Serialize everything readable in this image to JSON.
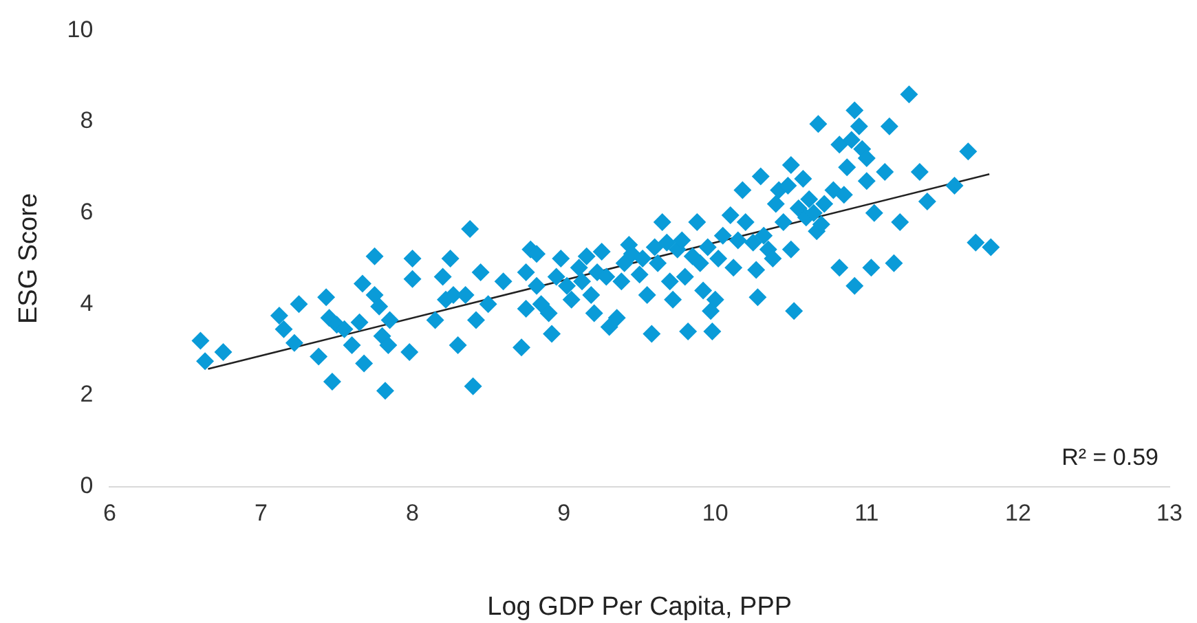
{
  "chart_data": {
    "type": "scatter",
    "xlabel": "Log GDP Per Capita, PPP",
    "ylabel": "ESG Score",
    "xlim": [
      6,
      13
    ],
    "xticks": [
      6,
      7,
      8,
      9,
      10,
      11,
      12,
      13
    ],
    "ylim": [
      0,
      10
    ],
    "yticks": [
      0,
      2,
      4,
      6,
      8,
      10
    ],
    "grid": false,
    "legend": false,
    "marker": "diamond",
    "annotations": [
      "R² = 0.59"
    ],
    "series": [
      {
        "color": "#0a9bd8",
        "x": [
          6.6,
          6.63,
          6.75,
          7.12,
          7.15,
          7.22,
          7.25,
          7.38,
          7.43,
          7.45,
          7.47,
          7.5,
          7.55,
          7.6,
          7.65,
          7.67,
          7.68,
          7.75,
          7.75,
          7.78,
          7.8,
          7.82,
          7.85,
          7.84,
          7.98,
          8.0,
          8.0,
          8.15,
          8.2,
          8.22,
          8.25,
          8.27,
          8.3,
          8.35,
          8.38,
          8.4,
          8.42,
          8.45,
          8.5,
          8.6,
          8.72,
          8.75,
          8.75,
          8.78,
          8.82,
          8.82,
          8.85,
          8.9,
          8.92,
          8.95,
          8.98,
          9.02,
          9.05,
          9.1,
          9.12,
          9.15,
          9.18,
          9.2,
          9.22,
          9.25,
          9.28,
          9.3,
          9.35,
          9.38,
          9.4,
          9.43,
          9.45,
          9.5,
          9.52,
          9.55,
          9.58,
          9.6,
          9.62,
          9.65,
          9.68,
          9.7,
          9.72,
          9.75,
          9.78,
          9.8,
          9.82,
          9.85,
          9.88,
          9.9,
          9.92,
          9.95,
          9.97,
          9.98,
          10.0,
          10.02,
          10.05,
          10.1,
          10.12,
          10.15,
          10.18,
          10.2,
          10.25,
          10.27,
          10.28,
          10.3,
          10.32,
          10.35,
          10.38,
          10.4,
          10.42,
          10.45,
          10.48,
          10.5,
          10.5,
          10.52,
          10.55,
          10.58,
          10.6,
          10.62,
          10.65,
          10.67,
          10.68,
          10.7,
          10.72,
          10.78,
          10.82,
          10.82,
          10.85,
          10.87,
          10.9,
          10.92,
          10.95,
          10.97,
          10.92,
          11.0,
          11.0,
          11.03,
          11.05,
          11.12,
          11.15,
          11.18,
          11.22,
          11.28,
          11.35,
          11.4,
          11.58,
          11.67,
          11.72,
          11.82
        ],
        "values": [
          3.2,
          2.75,
          2.95,
          3.75,
          3.45,
          3.15,
          4.0,
          2.85,
          4.15,
          3.7,
          2.3,
          3.55,
          3.45,
          3.1,
          3.6,
          4.45,
          2.7,
          5.05,
          4.2,
          3.95,
          3.3,
          2.1,
          3.65,
          3.1,
          2.95,
          5.0,
          4.55,
          3.65,
          4.6,
          4.1,
          5.0,
          4.2,
          3.1,
          4.2,
          5.65,
          2.2,
          3.65,
          4.7,
          4.0,
          4.5,
          3.05,
          4.7,
          3.9,
          5.2,
          5.1,
          4.4,
          4.0,
          3.8,
          3.35,
          4.6,
          5.0,
          4.4,
          4.1,
          4.8,
          4.5,
          5.05,
          4.2,
          3.8,
          4.7,
          5.15,
          4.6,
          3.5,
          3.7,
          4.5,
          4.9,
          5.3,
          5.1,
          4.65,
          5.0,
          4.2,
          3.35,
          5.25,
          4.9,
          5.8,
          5.35,
          4.5,
          4.1,
          5.2,
          5.4,
          4.6,
          3.4,
          5.05,
          5.8,
          4.9,
          4.3,
          5.25,
          3.85,
          3.4,
          4.1,
          5.0,
          5.5,
          5.95,
          4.8,
          5.4,
          6.5,
          5.8,
          5.35,
          4.75,
          4.15,
          6.8,
          5.5,
          5.2,
          5.0,
          6.2,
          6.5,
          5.8,
          6.6,
          7.05,
          5.2,
          3.85,
          6.1,
          6.75,
          5.9,
          6.3,
          6.0,
          5.6,
          7.95,
          5.75,
          6.2,
          6.5,
          7.5,
          4.8,
          6.4,
          7.0,
          7.6,
          8.25,
          7.9,
          7.4,
          4.4,
          7.2,
          6.7,
          4.8,
          6.0,
          6.9,
          7.9,
          4.9,
          5.8,
          8.6,
          6.9,
          6.25,
          6.6,
          7.35,
          5.35,
          5.25
        ]
      },
      {
        "type": "line",
        "color": "#222222",
        "marker": "none",
        "x": [
          6.65,
          11.81
        ],
        "values": [
          2.58,
          6.85
        ]
      }
    ]
  }
}
